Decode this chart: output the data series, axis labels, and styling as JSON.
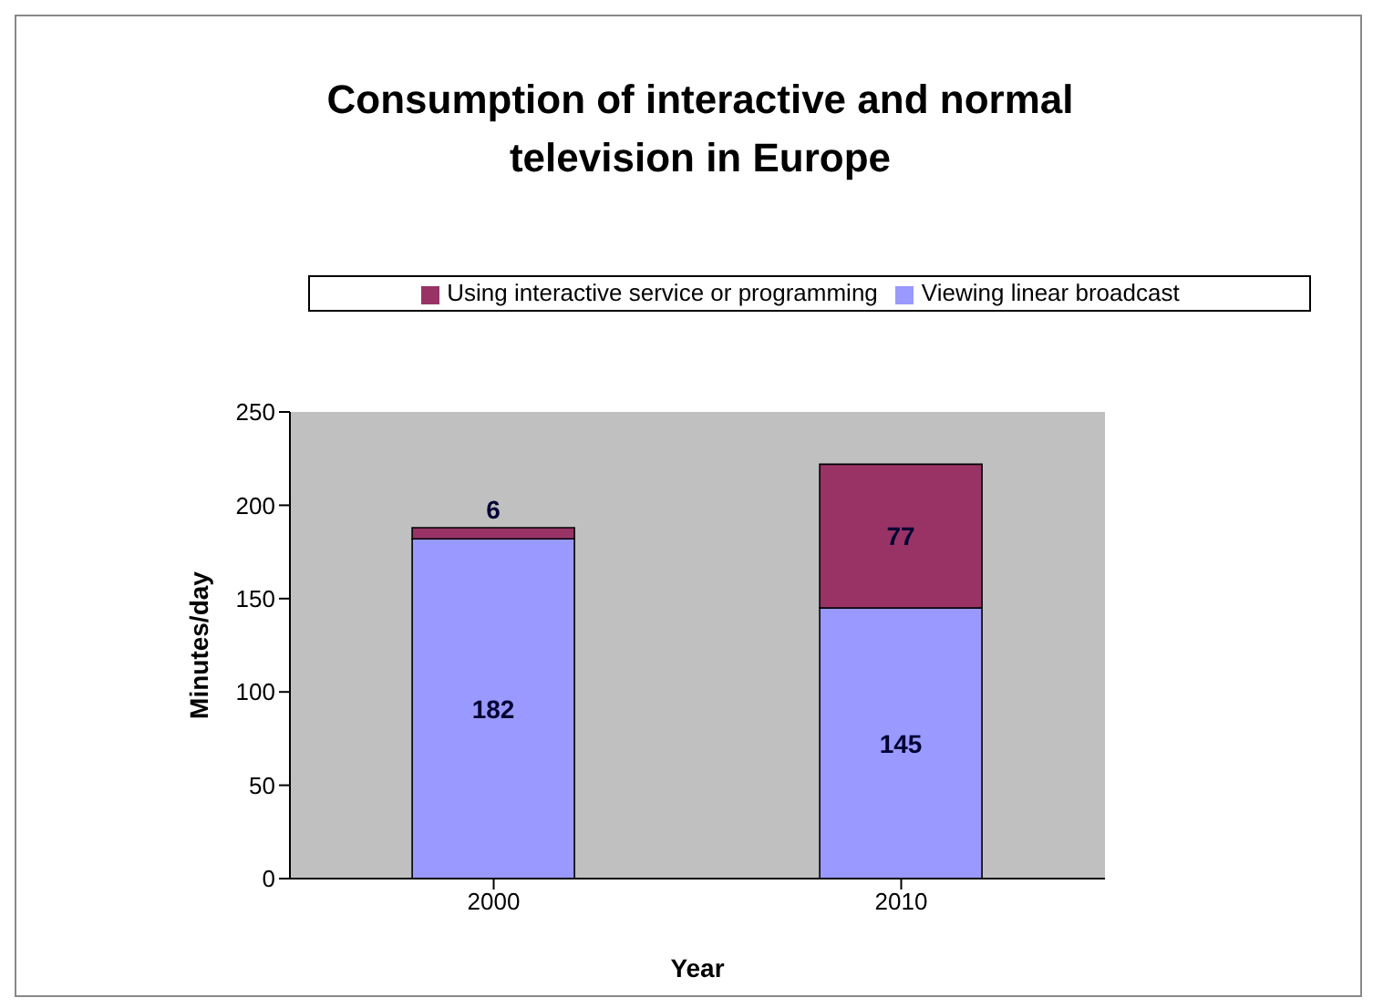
{
  "chart_data": {
    "type": "bar",
    "title": "Consumption of interactive and normal television in Europe",
    "categories": [
      "2000",
      "2010"
    ],
    "stacked": true,
    "xlabel": "Year",
    "ylabel": "Minutes/day",
    "ylim": [
      0,
      250
    ],
    "yticks": [
      0,
      50,
      100,
      150,
      200,
      250
    ],
    "grid": false,
    "legend": "top",
    "data_labels": true,
    "series": [
      {
        "name": "Viewing linear broadcast",
        "color": "#9999ff",
        "values": [
          182,
          145
        ]
      },
      {
        "name": "Using interactive service or programming",
        "color": "#993366",
        "values": [
          6,
          77
        ]
      }
    ]
  }
}
